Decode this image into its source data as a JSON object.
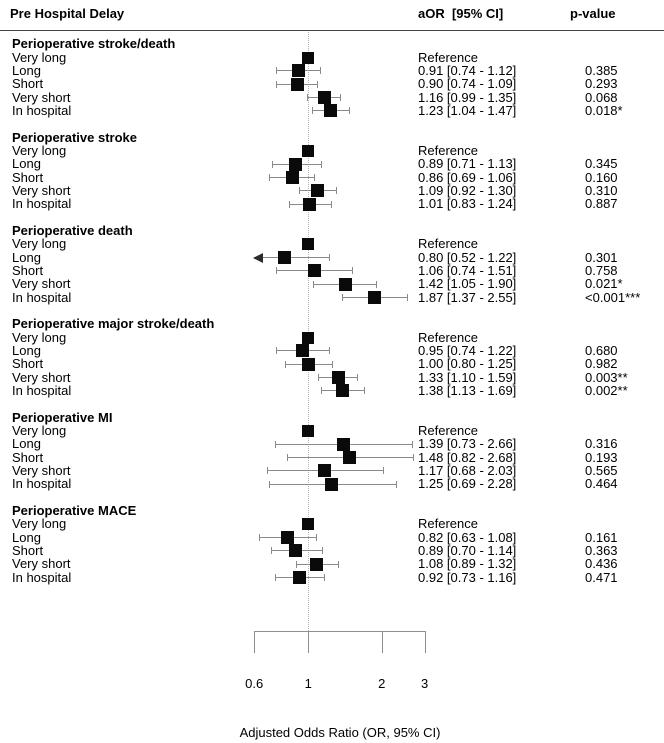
{
  "header": {
    "col1": "Pre Hospital Delay",
    "col2": "aOR  [95% CI]",
    "col3": "p-value"
  },
  "axis": {
    "ticks": [
      "0.6",
      "1",
      "2",
      "3"
    ],
    "tick_values": [
      0.6,
      1,
      2,
      3
    ],
    "label": "Adjusted Odds Ratio (OR, 95% CI)"
  },
  "chart_data": {
    "type": "forest",
    "marker": "square",
    "scale": "log",
    "xlim": [
      0.6,
      3
    ],
    "reference_line": 1,
    "xlabel": "Adjusted Odds Ratio (OR, 95% CI)",
    "columns": [
      "Pre Hospital Delay",
      "aOR  [95% CI]",
      "p-value"
    ],
    "reference_label": "Reference",
    "groups": [
      {
        "name": "Perioperative stroke/death",
        "rows": [
          {
            "label": "Very long",
            "or": 1.0,
            "lo": null,
            "hi": null,
            "aor_text": "Reference",
            "p": ""
          },
          {
            "label": "Long",
            "or": 0.91,
            "lo": 0.74,
            "hi": 1.12,
            "aor_text": "0.91 [0.74 - 1.12]",
            "p": "0.385"
          },
          {
            "label": "Short",
            "or": 0.9,
            "lo": 0.74,
            "hi": 1.09,
            "aor_text": "0.90 [0.74 - 1.09]",
            "p": "0.293"
          },
          {
            "label": "Very short",
            "or": 1.16,
            "lo": 0.99,
            "hi": 1.35,
            "aor_text": "1.16 [0.99 - 1.35]",
            "p": "0.068"
          },
          {
            "label": "In hospital",
            "or": 1.23,
            "lo": 1.04,
            "hi": 1.47,
            "aor_text": "1.23 [1.04 - 1.47]",
            "p": "0.018*"
          }
        ]
      },
      {
        "name": "Perioperative stroke",
        "rows": [
          {
            "label": "Very long",
            "or": 1.0,
            "lo": null,
            "hi": null,
            "aor_text": "Reference",
            "p": ""
          },
          {
            "label": "Long",
            "or": 0.89,
            "lo": 0.71,
            "hi": 1.13,
            "aor_text": "0.89 [0.71 - 1.13]",
            "p": "0.345"
          },
          {
            "label": "Short",
            "or": 0.86,
            "lo": 0.69,
            "hi": 1.06,
            "aor_text": "0.86 [0.69 - 1.06]",
            "p": "0.160"
          },
          {
            "label": "Very short",
            "or": 1.09,
            "lo": 0.92,
            "hi": 1.3,
            "aor_text": "1.09 [0.92 - 1.30]",
            "p": "0.310"
          },
          {
            "label": "In hospital",
            "or": 1.01,
            "lo": 0.83,
            "hi": 1.24,
            "aor_text": "1.01 [0.83 - 1.24]",
            "p": "0.887"
          }
        ]
      },
      {
        "name": "Perioperative death",
        "rows": [
          {
            "label": "Very long",
            "or": 1.0,
            "lo": null,
            "hi": null,
            "aor_text": "Reference",
            "p": ""
          },
          {
            "label": "Long",
            "or": 0.8,
            "lo": 0.52,
            "hi": 1.22,
            "aor_text": "0.80 [0.52 - 1.22]",
            "p": "0.301"
          },
          {
            "label": "Short",
            "or": 1.06,
            "lo": 0.74,
            "hi": 1.51,
            "aor_text": "1.06 [0.74 - 1.51]",
            "p": "0.758"
          },
          {
            "label": "Very short",
            "or": 1.42,
            "lo": 1.05,
            "hi": 1.9,
            "aor_text": "1.42 [1.05 - 1.90]",
            "p": "0.021*"
          },
          {
            "label": "In hospital",
            "or": 1.87,
            "lo": 1.37,
            "hi": 2.55,
            "aor_text": "1.87 [1.37 - 2.55]",
            "p": "<0.001***"
          }
        ]
      },
      {
        "name": "Perioperative major stroke/death",
        "rows": [
          {
            "label": "Very long",
            "or": 1.0,
            "lo": null,
            "hi": null,
            "aor_text": "Reference",
            "p": ""
          },
          {
            "label": "Long",
            "or": 0.95,
            "lo": 0.74,
            "hi": 1.22,
            "aor_text": "0.95 [0.74 - 1.22]",
            "p": "0.680"
          },
          {
            "label": "Short",
            "or": 1.0,
            "lo": 0.8,
            "hi": 1.25,
            "aor_text": "1.00 [0.80 - 1.25]",
            "p": "0.982"
          },
          {
            "label": "Very short",
            "or": 1.33,
            "lo": 1.1,
            "hi": 1.59,
            "aor_text": "1.33 [1.10 - 1.59]",
            "p": "0.003**"
          },
          {
            "label": "In hospital",
            "or": 1.38,
            "lo": 1.13,
            "hi": 1.69,
            "aor_text": "1.38 [1.13 - 1.69]",
            "p": "0.002**"
          }
        ]
      },
      {
        "name": "Perioperative MI",
        "rows": [
          {
            "label": "Very long",
            "or": 1.0,
            "lo": null,
            "hi": null,
            "aor_text": "Reference",
            "p": ""
          },
          {
            "label": "Long",
            "or": 1.39,
            "lo": 0.73,
            "hi": 2.66,
            "aor_text": "1.39 [0.73 - 2.66]",
            "p": "0.316"
          },
          {
            "label": "Short",
            "or": 1.48,
            "lo": 0.82,
            "hi": 2.68,
            "aor_text": "1.48 [0.82 - 2.68]",
            "p": "0.193"
          },
          {
            "label": "Very short",
            "or": 1.17,
            "lo": 0.68,
            "hi": 2.03,
            "aor_text": "1.17 [0.68 - 2.03]",
            "p": "0.565"
          },
          {
            "label": "In hospital",
            "or": 1.25,
            "lo": 0.69,
            "hi": 2.28,
            "aor_text": "1.25 [0.69 - 2.28]",
            "p": "0.464"
          }
        ]
      },
      {
        "name": "Perioperative MACE",
        "rows": [
          {
            "label": "Very long",
            "or": 1.0,
            "lo": null,
            "hi": null,
            "aor_text": "Reference",
            "p": ""
          },
          {
            "label": "Long",
            "or": 0.82,
            "lo": 0.63,
            "hi": 1.08,
            "aor_text": "0.82 [0.63 - 1.08]",
            "p": "0.161"
          },
          {
            "label": "Short",
            "or": 0.89,
            "lo": 0.7,
            "hi": 1.14,
            "aor_text": "0.89 [0.70 - 1.14]",
            "p": "0.363"
          },
          {
            "label": "Very short",
            "or": 1.08,
            "lo": 0.89,
            "hi": 1.32,
            "aor_text": "1.08 [0.89 - 1.32]",
            "p": "0.436"
          },
          {
            "label": "In hospital",
            "or": 0.92,
            "lo": 0.73,
            "hi": 1.16,
            "aor_text": "0.92 [0.73 - 1.16]",
            "p": "0.471"
          }
        ]
      }
    ]
  }
}
